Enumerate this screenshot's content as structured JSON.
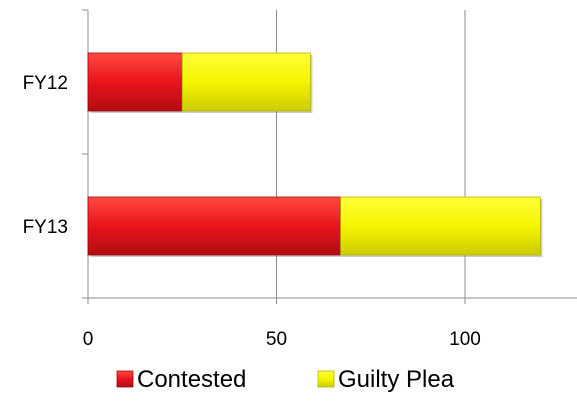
{
  "chart_data": {
    "type": "bar",
    "orientation": "horizontal",
    "stacked": true,
    "categories": [
      "FY12",
      "FY13"
    ],
    "series": [
      {
        "name": "Contested",
        "values": [
          25,
          67
        ],
        "color": "#e8141c"
      },
      {
        "name": "Guilty Plea",
        "values": [
          34,
          53
        ],
        "color": "#f5f500"
      }
    ],
    "xlim": [
      0,
      130
    ],
    "x_ticks": [
      0,
      50,
      100
    ],
    "x_tick_labels": [
      "0",
      "50",
      "100"
    ],
    "grid": "vertical gridlines at 50 and 100",
    "legend_position": "bottom"
  }
}
